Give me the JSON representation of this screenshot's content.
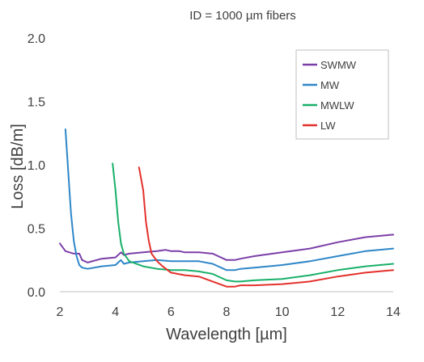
{
  "chart_data": {
    "type": "line",
    "title": "ID = 1000 µm fibers",
    "xlabel": "Wavelength [µm]",
    "ylabel": "Loss [dB/m]",
    "xlim": [
      2,
      14
    ],
    "ylim": [
      0,
      2.0
    ],
    "xticks": [
      2,
      4,
      6,
      8,
      10,
      12,
      14
    ],
    "xtick_labels": [
      "2",
      "4",
      "6",
      "8",
      "10",
      "12",
      "14"
    ],
    "yticks": [
      0,
      0.5,
      1.0,
      1.5,
      2.0
    ],
    "ytick_labels": [
      "0.0",
      "0.5",
      "1.0",
      "1.5",
      "2.0"
    ],
    "grid": false,
    "legend_position": "top-right",
    "series": [
      {
        "name": "SWMW",
        "color": "#7b3fa8",
        "x": [
          2.0,
          2.2,
          2.5,
          2.7,
          2.8,
          3.0,
          3.5,
          4.0,
          4.2,
          4.3,
          4.5,
          5.0,
          5.5,
          5.8,
          6.0,
          6.3,
          6.5,
          7.0,
          7.5,
          8.0,
          8.3,
          8.5,
          9.0,
          10.0,
          11.0,
          12.0,
          13.0,
          14.0
        ],
        "y": [
          0.38,
          0.32,
          0.3,
          0.3,
          0.25,
          0.23,
          0.26,
          0.27,
          0.31,
          0.29,
          0.3,
          0.31,
          0.32,
          0.33,
          0.32,
          0.32,
          0.31,
          0.31,
          0.3,
          0.25,
          0.25,
          0.26,
          0.28,
          0.31,
          0.34,
          0.39,
          0.43,
          0.45
        ]
      },
      {
        "name": "MW",
        "color": "#2e86c8",
        "x": [
          2.2,
          2.3,
          2.4,
          2.5,
          2.6,
          2.7,
          2.8,
          3.0,
          3.5,
          4.0,
          4.2,
          4.3,
          4.5,
          5.0,
          5.5,
          6.0,
          6.5,
          7.0,
          7.5,
          8.0,
          8.3,
          8.5,
          9.0,
          10.0,
          11.0,
          12.0,
          13.0,
          14.0
        ],
        "y": [
          1.28,
          0.95,
          0.62,
          0.4,
          0.28,
          0.21,
          0.19,
          0.18,
          0.2,
          0.21,
          0.25,
          0.22,
          0.23,
          0.24,
          0.25,
          0.24,
          0.24,
          0.24,
          0.22,
          0.17,
          0.17,
          0.18,
          0.19,
          0.21,
          0.24,
          0.28,
          0.32,
          0.34
        ]
      },
      {
        "name": "MWLW",
        "color": "#19b06a",
        "x": [
          3.9,
          4.0,
          4.1,
          4.2,
          4.3,
          4.5,
          5.0,
          5.5,
          6.0,
          6.5,
          7.0,
          7.5,
          8.0,
          8.3,
          8.5,
          9.0,
          10.0,
          11.0,
          12.0,
          13.0,
          14.0
        ],
        "y": [
          1.01,
          0.8,
          0.55,
          0.38,
          0.3,
          0.24,
          0.2,
          0.18,
          0.17,
          0.17,
          0.16,
          0.14,
          0.09,
          0.08,
          0.08,
          0.09,
          0.1,
          0.13,
          0.17,
          0.2,
          0.22
        ]
      },
      {
        "name": "LW",
        "color": "#e3312c",
        "x": [
          4.85,
          5.0,
          5.1,
          5.2,
          5.3,
          5.5,
          5.7,
          6.0,
          6.5,
          7.0,
          7.5,
          8.0,
          8.3,
          8.5,
          9.0,
          10.0,
          11.0,
          12.0,
          13.0,
          14.0
        ],
        "y": [
          0.98,
          0.8,
          0.55,
          0.4,
          0.3,
          0.24,
          0.2,
          0.15,
          0.13,
          0.12,
          0.08,
          0.04,
          0.04,
          0.05,
          0.05,
          0.06,
          0.08,
          0.12,
          0.15,
          0.17
        ]
      }
    ]
  }
}
